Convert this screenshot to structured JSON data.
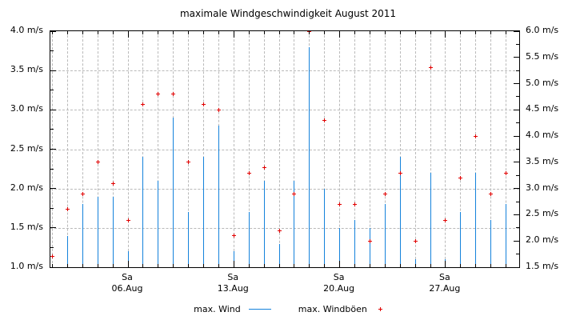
{
  "chart_data": {
    "type": "bar",
    "title": "maximale Windgeschwindigkeit August 2011",
    "x": [
      1,
      2,
      3,
      4,
      5,
      6,
      7,
      8,
      9,
      10,
      11,
      12,
      13,
      14,
      15,
      16,
      17,
      18,
      19,
      20,
      21,
      22,
      23,
      24,
      25,
      26,
      27,
      28,
      29,
      30,
      31
    ],
    "series": [
      {
        "name": "max. Wind",
        "style": "impulses",
        "axis": "left",
        "unit": "m/s",
        "color": "#1482dc",
        "values": [
          null,
          1.4,
          1.8,
          1.9,
          1.9,
          1.2,
          2.4,
          2.1,
          2.9,
          1.7,
          2.4,
          2.8,
          1.2,
          1.7,
          2.1,
          1.3,
          2.1,
          3.8,
          2.0,
          1.5,
          1.6,
          1.5,
          1.8,
          2.4,
          1.1,
          2.2,
          1.1,
          1.7,
          2.2,
          1.6,
          1.8
        ]
      },
      {
        "name": "max. Windböen",
        "style": "points",
        "marker": "plus",
        "axis": "right",
        "unit": "m/s",
        "color": "#e00000",
        "values": [
          1.7,
          2.6,
          2.9,
          3.5,
          3.1,
          2.4,
          4.6,
          4.8,
          4.8,
          3.5,
          4.6,
          4.5,
          2.1,
          3.3,
          3.4,
          2.2,
          2.9,
          6.0,
          4.3,
          2.7,
          2.7,
          2.0,
          2.9,
          3.3,
          2.0,
          5.3,
          2.4,
          3.2,
          4.0,
          2.9,
          3.3
        ]
      }
    ],
    "left_axis": {
      "min": 1.0,
      "max": 4.0,
      "major_step": 0.5,
      "minor_step": 0.25,
      "tick_labels": [
        "4.0 m/s",
        "3.5 m/s",
        "3.0 m/s",
        "2.5 m/s",
        "2.0 m/s",
        "1.5 m/s",
        "1.0 m/s"
      ]
    },
    "right_axis": {
      "min": 1.5,
      "max": 6.0,
      "major_step": 0.5,
      "minor_step": 0.25,
      "tick_labels": [
        "6.0 m/s",
        "5.5 m/s",
        "5.0 m/s",
        "4.5 m/s",
        "4.0 m/s",
        "3.5 m/s",
        "3.0 m/s",
        "2.5 m/s",
        "2.0 m/s",
        "1.5 m/s"
      ]
    },
    "x_axis": {
      "saturdays": [
        {
          "day": 6,
          "weekday": "Sa",
          "date": "06.Aug"
        },
        {
          "day": 13,
          "weekday": "Sa",
          "date": "13.Aug"
        },
        {
          "day": 20,
          "weekday": "Sa",
          "date": "20.Aug"
        },
        {
          "day": 27,
          "weekday": "Sa",
          "date": "27.Aug"
        }
      ]
    },
    "grid": true,
    "legend": {
      "position": "bottom-center",
      "items": [
        {
          "label": "max. Wind",
          "swatch": "line",
          "color": "#1482dc"
        },
        {
          "label": "max. Windböen",
          "swatch": "plus",
          "color": "#e00000"
        }
      ]
    }
  }
}
